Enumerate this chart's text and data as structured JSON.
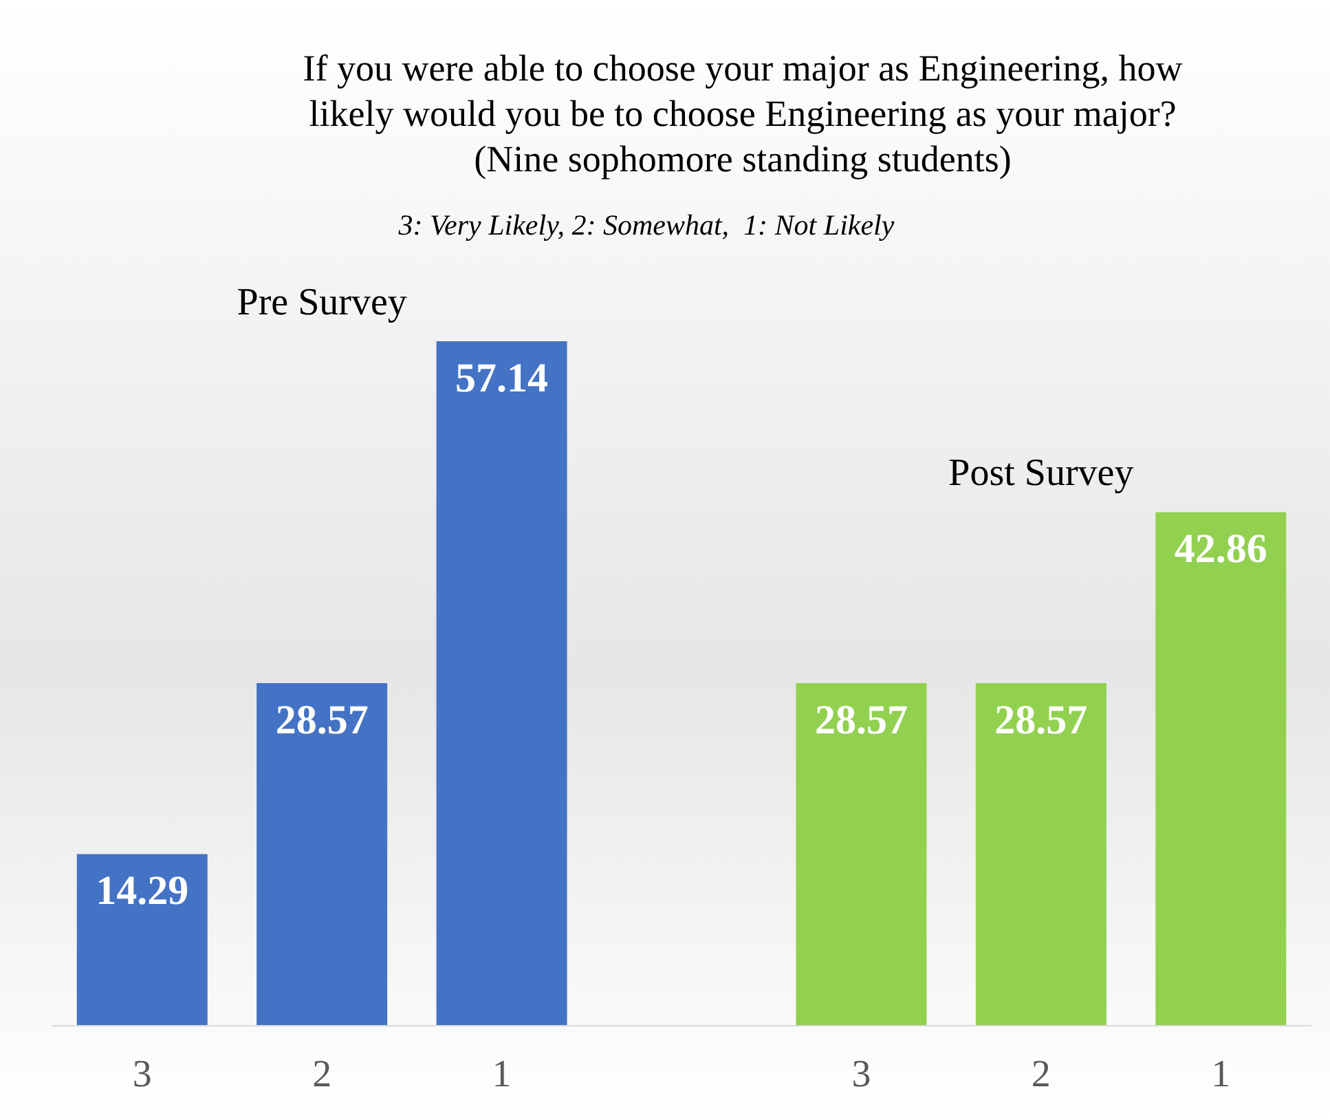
{
  "chart_data": {
    "type": "bar",
    "title": "If you were able to choose your major as Engineering, how\nlikely would you be to choose Engineering as your major?\n(Nine sophomore standing students)",
    "subtitle": "3: Very Likely, 2: Somewhat,  1: Not Likely",
    "categories": [
      "3",
      "2",
      "1",
      null,
      "3",
      "2",
      "1"
    ],
    "series": [
      {
        "name": "Pre Survey",
        "color": "#4472c4",
        "values": [
          14.29,
          28.57,
          57.14,
          null,
          null,
          null,
          null
        ]
      },
      {
        "name": "Post Survey",
        "color": "#92d050",
        "values": [
          null,
          null,
          null,
          null,
          28.57,
          28.57,
          42.86
        ]
      }
    ],
    "data_labels": true
  }
}
